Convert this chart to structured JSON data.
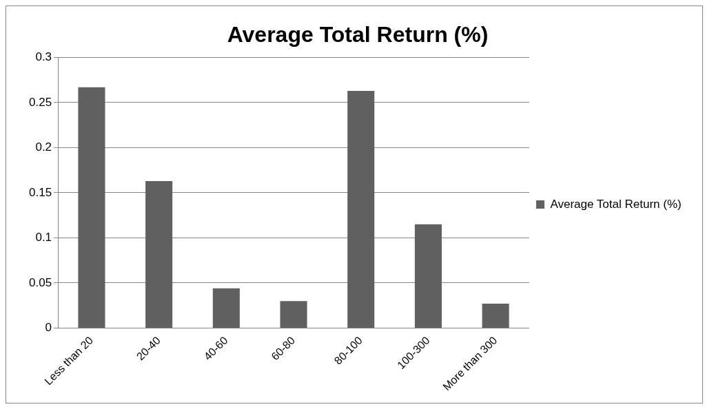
{
  "chart_data": {
    "type": "bar",
    "title": "Average Total Return (%)",
    "categories": [
      "Less than 20",
      "20-40",
      "40-60",
      "60-80",
      "80-100",
      "100-300",
      "More than 300"
    ],
    "series": [
      {
        "name": "Average Total Return (%)",
        "color": "#606060",
        "values": [
          0.267,
          0.163,
          0.044,
          0.03,
          0.263,
          0.115,
          0.027
        ]
      }
    ],
    "ylim": [
      0,
      0.3
    ],
    "yticks": [
      0,
      0.05,
      0.1,
      0.15,
      0.2,
      0.25,
      0.3
    ],
    "grid": "y",
    "legend": "right"
  }
}
